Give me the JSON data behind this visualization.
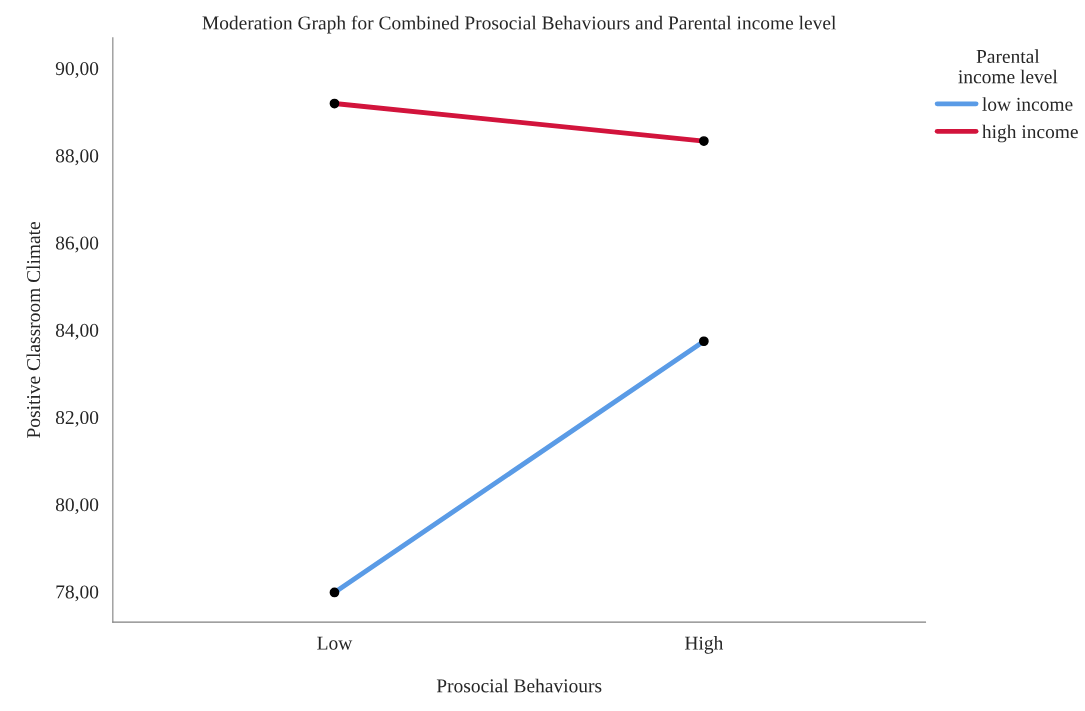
{
  "chart_data": {
    "type": "line",
    "title": "Moderation Graph for Combined Prosocial Behaviours and Parental income level",
    "xlabel": "Prosocial Behaviours",
    "ylabel": "Positive Classroom Climate",
    "legend_title": "Parental\nincome level",
    "categories": [
      "Low",
      "High"
    ],
    "series": [
      {
        "name": "low income",
        "color": "#5a9be6",
        "values": [
          77.98,
          83.74
        ]
      },
      {
        "name": "high income",
        "color": "#d2143c",
        "values": [
          89.19,
          88.33
        ]
      }
    ],
    "ylim": [
      77.3,
      90.7
    ],
    "yticks": [
      {
        "value": 78,
        "label": "78,00"
      },
      {
        "value": 80,
        "label": "80,00"
      },
      {
        "value": 82,
        "label": "82,00"
      },
      {
        "value": 84,
        "label": "84,00"
      },
      {
        "value": 86,
        "label": "86,00"
      },
      {
        "value": 88,
        "label": "88,00"
      },
      {
        "value": 90,
        "label": "90,00"
      }
    ],
    "grid": false,
    "legend": "top right",
    "marker": "circle",
    "line_style": "solid"
  }
}
